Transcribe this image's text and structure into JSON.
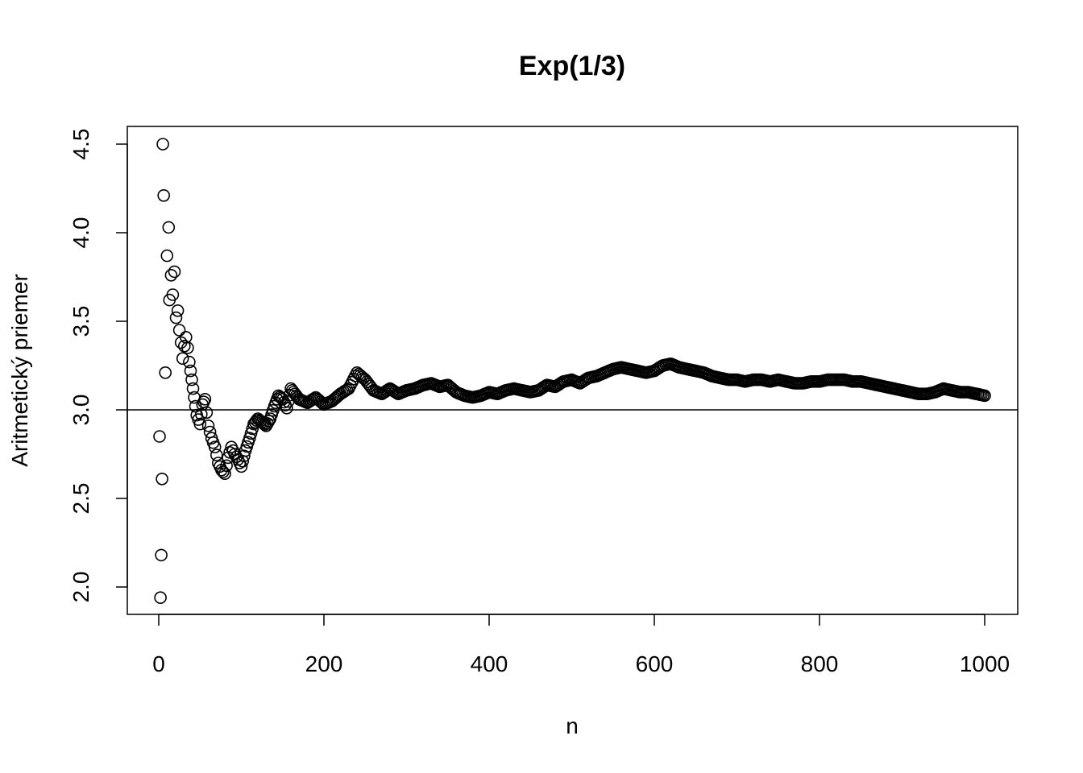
{
  "chart_data": {
    "type": "scatter",
    "title": "Exp(1/3)",
    "xlabel": "n",
    "ylabel": "Aritmetický priemer",
    "xlim": [
      0,
      1000
    ],
    "ylim": [
      1.9,
      4.6
    ],
    "xticks": [
      0,
      200,
      400,
      600,
      800,
      1000
    ],
    "xtick_labels": [
      "0",
      "200",
      "400",
      "600",
      "800",
      "1000"
    ],
    "yticks": [
      2.0,
      2.5,
      3.0,
      3.5,
      4.0,
      4.5
    ],
    "ytick_labels": [
      "2.0",
      "2.5",
      "3.0",
      "3.5",
      "4.0",
      "4.5"
    ],
    "reference_line": {
      "orientation": "horizontal",
      "y": 3.0
    },
    "marker": "open-circle",
    "grid": false,
    "series": [
      {
        "x": [
          1,
          2,
          3,
          4,
          5,
          6,
          8,
          10,
          12,
          13,
          15,
          17,
          19,
          21,
          23,
          25,
          27,
          29,
          31,
          33,
          35,
          37,
          40,
          43,
          46,
          50,
          53,
          56,
          60,
          64,
          68,
          72,
          76,
          80,
          84,
          88,
          92,
          96,
          100,
          105,
          110,
          115,
          120,
          125,
          130,
          135,
          140,
          145,
          150,
          155,
          160,
          165,
          170,
          180,
          190,
          200,
          210,
          220,
          230,
          240,
          250,
          260,
          270,
          280,
          290,
          300,
          310,
          320,
          330,
          340,
          350,
          360,
          370,
          380,
          390,
          400,
          410,
          420,
          430,
          440,
          450,
          460,
          470,
          480,
          490,
          500,
          510,
          520,
          530,
          540,
          550,
          560,
          570,
          580,
          590,
          600,
          610,
          620,
          630,
          640,
          650,
          660,
          670,
          680,
          690,
          700,
          710,
          720,
          730,
          740,
          750,
          760,
          770,
          780,
          790,
          800,
          810,
          820,
          830,
          840,
          850,
          860,
          870,
          880,
          890,
          900,
          910,
          920,
          930,
          940,
          950,
          960,
          970,
          980,
          990,
          1000
        ],
        "y": [
          2.85,
          1.94,
          2.18,
          2.61,
          4.5,
          4.21,
          3.21,
          3.87,
          4.03,
          3.62,
          3.76,
          3.65,
          3.78,
          3.52,
          3.56,
          3.45,
          3.38,
          3.29,
          3.36,
          3.41,
          3.35,
          3.27,
          3.17,
          3.07,
          2.97,
          2.92,
          3.03,
          3.06,
          2.91,
          2.84,
          2.79,
          2.7,
          2.66,
          2.64,
          2.73,
          2.79,
          2.75,
          2.72,
          2.68,
          2.77,
          2.84,
          2.92,
          2.95,
          2.93,
          2.91,
          2.95,
          3.02,
          3.08,
          3.06,
          3.01,
          3.12,
          3.09,
          3.06,
          3.04,
          3.07,
          3.03,
          3.05,
          3.09,
          3.12,
          3.21,
          3.17,
          3.11,
          3.09,
          3.12,
          3.09,
          3.11,
          3.12,
          3.14,
          3.15,
          3.13,
          3.14,
          3.1,
          3.08,
          3.07,
          3.08,
          3.1,
          3.09,
          3.11,
          3.12,
          3.11,
          3.1,
          3.11,
          3.14,
          3.13,
          3.16,
          3.17,
          3.15,
          3.18,
          3.19,
          3.21,
          3.23,
          3.24,
          3.23,
          3.22,
          3.21,
          3.22,
          3.25,
          3.26,
          3.24,
          3.23,
          3.22,
          3.21,
          3.19,
          3.18,
          3.17,
          3.17,
          3.16,
          3.17,
          3.17,
          3.16,
          3.17,
          3.16,
          3.15,
          3.15,
          3.16,
          3.16,
          3.17,
          3.17,
          3.17,
          3.16,
          3.16,
          3.15,
          3.14,
          3.13,
          3.12,
          3.11,
          3.1,
          3.09,
          3.09,
          3.1,
          3.12,
          3.11,
          3.1,
          3.1,
          3.09,
          3.08
        ]
      }
    ]
  }
}
